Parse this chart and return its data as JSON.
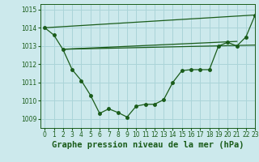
{
  "bg_color": "#cce9ec",
  "grid_color": "#aad4d8",
  "line_color": "#1a5c1a",
  "title": "Graphe pression niveau de la mer (hPa)",
  "xlim": [
    -0.5,
    23
  ],
  "ylim": [
    1008.5,
    1015.3
  ],
  "yticks": [
    1009,
    1010,
    1011,
    1012,
    1013,
    1014,
    1015
  ],
  "xticks": [
    0,
    1,
    2,
    3,
    4,
    5,
    6,
    7,
    8,
    9,
    10,
    11,
    12,
    13,
    14,
    15,
    16,
    17,
    18,
    19,
    20,
    21,
    22,
    23
  ],
  "line1_x": [
    0,
    1,
    2,
    3,
    4,
    5,
    6,
    7,
    8,
    9,
    10,
    11,
    12,
    13,
    14,
    15,
    16,
    17,
    18,
    19,
    20,
    21,
    22,
    23
  ],
  "line1_y": [
    1014.0,
    1013.6,
    1012.8,
    1011.7,
    1011.1,
    1010.3,
    1009.3,
    1009.55,
    1009.35,
    1009.1,
    1009.7,
    1009.8,
    1009.8,
    1010.05,
    1011.0,
    1011.65,
    1011.7,
    1011.7,
    1011.7,
    1013.0,
    1013.2,
    1013.0,
    1013.5,
    1014.7
  ],
  "line2_x": [
    0,
    23
  ],
  "line2_y": [
    1014.0,
    1014.7
  ],
  "line3_x": [
    2,
    23
  ],
  "line3_y": [
    1012.82,
    1013.05
  ],
  "line4_x": [
    2,
    21
  ],
  "line4_y": [
    1012.82,
    1013.25
  ],
  "title_fontsize": 7.5,
  "tick_fontsize": 5.5,
  "marker_size": 2.5,
  "line_width": 0.9
}
